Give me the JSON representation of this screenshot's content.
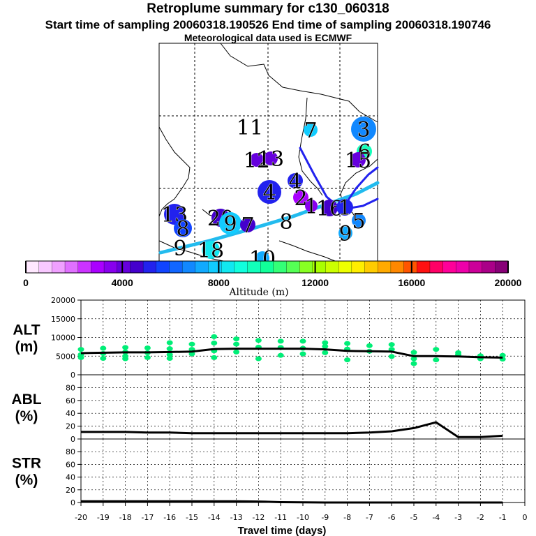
{
  "header": {
    "title": "Retroplume summary for c130_060318",
    "line2": "Start time of sampling 20060318.190526      End time of sampling 20060318.190746",
    "line3": "Meteorological data used is ECMWF"
  },
  "colors": {
    "series": "#00ee77",
    "line": "#000000",
    "plume": "#22bbee",
    "coast": "#000000"
  },
  "colorbar": {
    "label": "Altitude (m)",
    "ticks": [
      "0",
      "4000",
      "8000",
      "12000",
      "16000",
      "20000"
    ],
    "colors": [
      "#ffe8ff",
      "#f8c8ff",
      "#f0a0ff",
      "#e070ff",
      "#cc33ff",
      "#aa00ff",
      "#8800ee",
      "#6600dd",
      "#4400cc",
      "#2222ee",
      "#1144ff",
      "#1166ff",
      "#1188ff",
      "#11aaff",
      "#11ccff",
      "#11e8f0",
      "#11ffdd",
      "#11ffbb",
      "#11ff99",
      "#33ff77",
      "#55ff55",
      "#88ff22",
      "#aaff00",
      "#ccff00",
      "#eeff00",
      "#ffee00",
      "#ffcc00",
      "#ffaa00",
      "#ff8800",
      "#ff5500",
      "#ff1111",
      "#ff0066",
      "#ff0099",
      "#ee00aa",
      "#cc0099",
      "#aa0088",
      "#880077"
    ]
  },
  "map": {
    "markers": [
      {
        "label": "11",
        "x": 358,
        "y": 182,
        "r": 0,
        "c": "#ffffff"
      },
      {
        "label": "7",
        "x": 445,
        "y": 186,
        "r": 10,
        "c": "#11ccff"
      },
      {
        "label": "3",
        "x": 521,
        "y": 185,
        "r": 18,
        "c": "#1188ff"
      },
      {
        "label": "6",
        "x": 522,
        "y": 217,
        "r": 11,
        "c": "#11ffbb"
      },
      {
        "label": "15",
        "x": 513,
        "y": 229,
        "r": 11,
        "c": "#6600dd"
      },
      {
        "label": "12",
        "x": 368,
        "y": 229,
        "r": 10,
        "c": "#6600dd"
      },
      {
        "label": "13",
        "x": 388,
        "y": 227,
        "r": 10,
        "c": "#6600dd"
      },
      {
        "label": "4",
        "x": 386,
        "y": 275,
        "r": 17,
        "c": "#2222ee"
      },
      {
        "label": "4",
        "x": 423,
        "y": 259,
        "r": 11,
        "c": "#2222ee"
      },
      {
        "label": "2",
        "x": 431,
        "y": 283,
        "r": 11,
        "c": "#aa00ff"
      },
      {
        "label": "1",
        "x": 446,
        "y": 295,
        "r": 9,
        "c": "#8800ee"
      },
      {
        "label": "16",
        "x": 472,
        "y": 298,
        "r": 12,
        "c": "#4400cc"
      },
      {
        "label": "1",
        "x": 494,
        "y": 297,
        "r": 12,
        "c": "#2222ee"
      },
      {
        "label": "5",
        "x": 514,
        "y": 316,
        "r": 10,
        "c": "#1188ff"
      },
      {
        "label": "9",
        "x": 495,
        "y": 334,
        "r": 10,
        "c": "#11aaff"
      },
      {
        "label": "13",
        "x": 250,
        "y": 307,
        "r": 15,
        "c": "#2222ee"
      },
      {
        "label": "8",
        "x": 262,
        "y": 327,
        "r": 13,
        "c": "#1144ff"
      },
      {
        "label": "20",
        "x": 316,
        "y": 312,
        "r": 13,
        "c": "#4400cc"
      },
      {
        "label": "9",
        "x": 330,
        "y": 320,
        "r": 16,
        "c": "#11ccff"
      },
      {
        "label": "7",
        "x": 355,
        "y": 322,
        "r": 11,
        "c": "#4400cc"
      },
      {
        "label": "8",
        "x": 410,
        "y": 317,
        "r": 0,
        "c": "#ffffff"
      },
      {
        "label": "9",
        "x": 258,
        "y": 355,
        "r": 0,
        "c": "#ffffff"
      },
      {
        "label": "18",
        "x": 302,
        "y": 358,
        "r": 13,
        "c": "#11e8f0"
      },
      {
        "label": "10",
        "x": 376,
        "y": 370,
        "r": 10,
        "c": "#11aaff"
      }
    ]
  },
  "chart_data": [
    {
      "type": "scatter",
      "title": "",
      "ylabel": "ALT (m)",
      "ylabel_lines": [
        "ALT",
        "(m)"
      ],
      "xlabel": "",
      "xlim": [
        -20,
        0
      ],
      "ylim": [
        0,
        20000
      ],
      "yticks": [
        "0",
        "5000",
        "10000",
        "15000",
        "20000"
      ],
      "line": {
        "x": [
          -20,
          -19,
          -18,
          -17,
          -16,
          -15,
          -14,
          -13,
          -12,
          -11,
          -10,
          -9,
          -8,
          -7,
          -6,
          -5,
          -4,
          -3,
          -2,
          -1
        ],
        "y": [
          5800,
          5900,
          6000,
          6000,
          6100,
          6200,
          6900,
          7000,
          7000,
          7000,
          7000,
          6800,
          6400,
          6300,
          6200,
          5000,
          5000,
          4900,
          4700,
          4600
        ]
      },
      "scatter": {
        "x": [
          -20,
          -20,
          -20,
          -19,
          -19,
          -19,
          -18,
          -18,
          -18,
          -18,
          -17,
          -17,
          -17,
          -16,
          -16,
          -16,
          -16,
          -15,
          -15,
          -15,
          -14,
          -14,
          -14,
          -14,
          -13,
          -13,
          -13,
          -12,
          -12,
          -12,
          -11,
          -11,
          -11,
          -10,
          -10,
          -10,
          -9,
          -9,
          -9,
          -8,
          -8,
          -8,
          -7,
          -7,
          -6,
          -6,
          -6,
          -5,
          -5,
          -5,
          -4,
          -4,
          -3,
          -3,
          -2,
          -2,
          -1,
          -1
        ],
        "y": [
          6800,
          5400,
          4600,
          7100,
          5700,
          4400,
          7300,
          6100,
          5000,
          4300,
          7200,
          5900,
          4600,
          8600,
          7000,
          5400,
          4400,
          8200,
          6800,
          5600,
          10200,
          8500,
          6400,
          4600,
          9600,
          8200,
          6100,
          9200,
          7400,
          4300,
          9000,
          7300,
          5200,
          9000,
          7100,
          5600,
          8600,
          7600,
          5900,
          8400,
          6900,
          4000,
          7800,
          6300,
          8100,
          6800,
          4900,
          6000,
          4300,
          3000,
          6800,
          4000,
          5900,
          5400,
          5100,
          4300,
          5200,
          4200
        ]
      }
    },
    {
      "type": "line",
      "ylabel": "ABL (%)",
      "ylabel_lines": [
        "ABL",
        "(%)"
      ],
      "xlim": [
        -20,
        0
      ],
      "ylim": [
        0,
        100
      ],
      "yticks": [
        "0",
        "20",
        "40",
        "60",
        "80"
      ],
      "x": [
        -20,
        -19,
        -18,
        -17,
        -16,
        -15,
        -14,
        -13,
        -12,
        -11,
        -10,
        -9,
        -8,
        -7,
        -6,
        -5,
        -4,
        -3,
        -2,
        -1
      ],
      "y": [
        11,
        11,
        11,
        10,
        10,
        9,
        9,
        9,
        9,
        9,
        9,
        9,
        9,
        10,
        12,
        17,
        26,
        3,
        3,
        5
      ]
    },
    {
      "type": "line",
      "ylabel": "STR (%)",
      "ylabel_lines": [
        "STR",
        "(%)"
      ],
      "xlabel": "Travel time (days)",
      "xlim": [
        -20,
        0
      ],
      "ylim": [
        0,
        100
      ],
      "yticks": [
        "0",
        "20",
        "40",
        "60",
        "80"
      ],
      "xticks": [
        "-20",
        "-19",
        "-18",
        "-17",
        "-16",
        "-15",
        "-14",
        "-13",
        "-12",
        "-11",
        "-10",
        "-9",
        "-8",
        "-7",
        "-6",
        "-5",
        "-4",
        "-3",
        "-2",
        "-1",
        "0"
      ],
      "x": [
        -20,
        -19,
        -18,
        -17,
        -16,
        -15,
        -14,
        -13,
        -12,
        -11,
        -10,
        -9,
        -8,
        -7,
        -6,
        -5,
        -4,
        -3,
        -2,
        -1
      ],
      "y": [
        2,
        2,
        2,
        2,
        2,
        2,
        2,
        2,
        1.5,
        0.5,
        0.3,
        0,
        0,
        0,
        0,
        0,
        0,
        0,
        0,
        0
      ]
    }
  ]
}
